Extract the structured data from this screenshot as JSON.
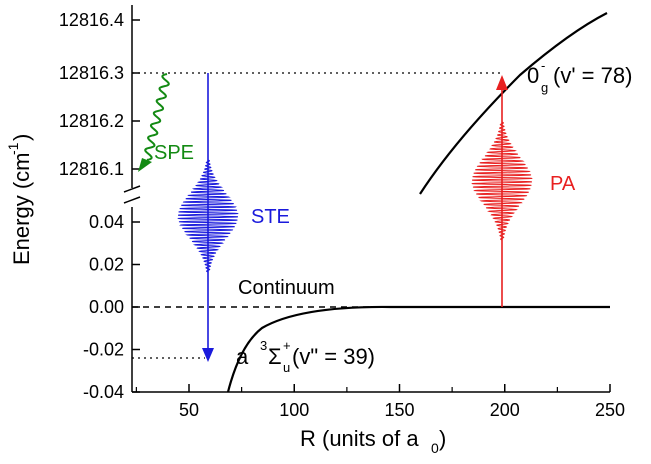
{
  "axes": {
    "xlabel": "R (units of a",
    "xlabel_sub": "0",
    "xlabel_close": ")",
    "ylabel": "Energy (cm",
    "ylabel_sup": "-1",
    "ylabel_close": ")",
    "x_ticks": [
      "50",
      "100",
      "150",
      "200",
      "250"
    ],
    "y_ticks_top": [
      "12816.4",
      "12816.3",
      "12816.2",
      "12816.1"
    ],
    "y_ticks_bottom": [
      "0.04",
      "0.02",
      "0.00",
      "-0.02",
      "-0.04"
    ],
    "xlim": [
      25,
      250
    ],
    "ylim_top": [
      12816.05,
      12816.45
    ],
    "ylim_bottom": [
      -0.04,
      0.05
    ],
    "broken_y_axis": true
  },
  "labels": {
    "spe": "SPE",
    "ste": "STE",
    "pa": "PA",
    "continuum": "Continuum",
    "excited_state_main": "0",
    "excited_state_sup": "-",
    "excited_state_sub": "g",
    "excited_state_rest": "(v' = 78)",
    "ground_state_prefix": "a",
    "ground_state_sup": "3",
    "ground_state_sigma": "Σ",
    "ground_state_sigma_sup": "+",
    "ground_state_sigma_sub": "u",
    "ground_state_rest": "(v\" = 39)"
  },
  "colors": {
    "spe": "#138a13",
    "ste": "#1a1adc",
    "pa": "#e82020",
    "axis": "#000000"
  }
}
